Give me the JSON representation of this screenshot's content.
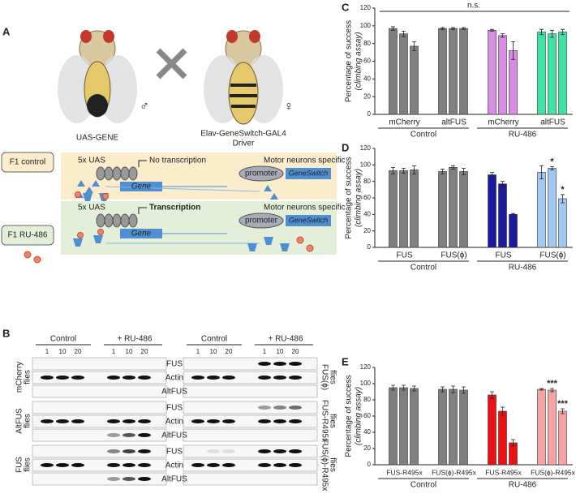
{
  "panel_a": {
    "letter": "A",
    "male_label": "UAS-GENE",
    "male_symbol": "♂",
    "female_label": [
      "Elav-GeneSwitch-GAL4",
      "Driver"
    ],
    "female_symbol": "♀",
    "rows": [
      {
        "label": "F1 control",
        "uas": "5x UAS",
        "status": "No transcription",
        "gene": "Gene",
        "specific": "Motor neurons specific",
        "promoter": "promoter",
        "switch": "GeneSwitch"
      },
      {
        "label": "F1 RU-486",
        "uas": "5x UAS",
        "status": "Transcription",
        "gene": "Gene",
        "specific": "Motor neurons specific",
        "promoter": "promoter",
        "switch": "GeneSwitch"
      }
    ]
  },
  "panel_b": {
    "letter": "B",
    "headers": [
      "Control",
      "+ RU-486"
    ],
    "lanes": [
      "1",
      "10",
      "20"
    ],
    "blots": [
      "FUS",
      "Actin",
      "AltFUS"
    ],
    "left_rows": [
      [
        "mCherry",
        "flies"
      ],
      [
        "AltFUS",
        "flies"
      ],
      [
        "FUS",
        "flies"
      ]
    ],
    "right_rows": [
      [
        "FUS(ϕ)",
        "flies"
      ],
      [
        "FUS-R495x",
        "flies"
      ],
      [
        "FUS(ϕ)-R495x",
        "flies"
      ]
    ]
  },
  "chart_data": [
    {
      "type": "bar",
      "letter": "C",
      "y_label": "Percentage of success",
      "y_label_2": "(climbing assay)",
      "ylim": [
        0,
        120
      ],
      "yticks": [
        0,
        20,
        40,
        60,
        80,
        100,
        120
      ],
      "categories": [
        "mCherry",
        "altFUS",
        "mCherry",
        "altFUS"
      ],
      "groups": [
        "Control",
        "RU-486"
      ],
      "colors": [
        "#7f7f7f",
        "#7f7f7f",
        "#d98be6",
        "#3fe3a6"
      ],
      "values": [
        [
          97,
          91,
          77
        ],
        [
          97,
          97,
          97
        ],
        [
          95,
          89,
          72
        ],
        [
          93,
          91,
          93
        ]
      ],
      "errors": [
        [
          2,
          3,
          5
        ],
        [
          1,
          1,
          1
        ],
        [
          1,
          2,
          10
        ],
        [
          3,
          4,
          3
        ]
      ],
      "note": "n.s."
    },
    {
      "type": "bar",
      "letter": "D",
      "y_label": "Percentage of success",
      "y_label_2": "(climbing assay)",
      "ylim": [
        0,
        120
      ],
      "yticks": [
        0,
        20,
        40,
        60,
        80,
        100,
        120
      ],
      "categories": [
        "FUS",
        "FUS(ϕ)",
        "FUS",
        "FUS(ϕ)"
      ],
      "groups": [
        "Control",
        "RU-486"
      ],
      "colors": [
        "#7f7f7f",
        "#7f7f7f",
        "#1a1a9c",
        "#9fc8f2"
      ],
      "values": [
        [
          93,
          93,
          94
        ],
        [
          92,
          97,
          92
        ],
        [
          88,
          77,
          40
        ],
        [
          91,
          96,
          59
        ]
      ],
      "errors": [
        [
          4,
          3,
          5
        ],
        [
          3,
          2,
          4
        ],
        [
          3,
          3,
          1
        ],
        [
          8,
          2,
          5
        ]
      ],
      "significance": [
        [
          null,
          null,
          null
        ],
        [
          null,
          null,
          null
        ],
        [
          null,
          null,
          null
        ],
        [
          null,
          "*",
          "*"
        ]
      ],
      "significance_color": "#2233cc"
    },
    {
      "type": "bar",
      "letter": "E",
      "y_label": "Percentage of success",
      "y_label_2": "(climbing assay)",
      "ylim": [
        0,
        120
      ],
      "yticks": [
        0,
        20,
        40,
        60,
        80,
        100,
        120
      ],
      "categories": [
        "FUS-R495x",
        "FUS(ϕ)-R495x",
        "FUS-R495x",
        "FUS(ϕ)-R495x"
      ],
      "groups": [
        "Control",
        "RU-486"
      ],
      "colors": [
        "#7f7f7f",
        "#7f7f7f",
        "#ee1111",
        "#f5a3a3"
      ],
      "values": [
        [
          95,
          95,
          94
        ],
        [
          93,
          93,
          92
        ],
        [
          86,
          66,
          27
        ],
        [
          93,
          92,
          66
        ]
      ],
      "errors": [
        [
          3,
          3,
          3
        ],
        [
          3,
          4,
          4
        ],
        [
          4,
          5,
          4
        ],
        [
          1,
          2,
          3
        ]
      ],
      "significance": [
        [
          null,
          null,
          null
        ],
        [
          null,
          null,
          null
        ],
        [
          null,
          null,
          null
        ],
        [
          null,
          "***",
          "***"
        ]
      ],
      "significance_color": "#e02020"
    }
  ]
}
